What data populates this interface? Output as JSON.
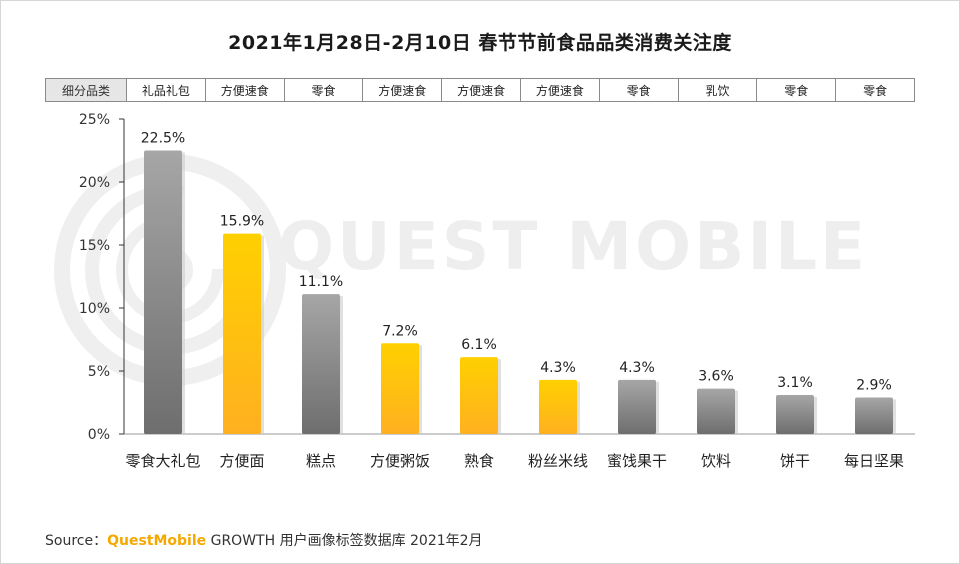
{
  "title": "2021年1月28日-2月10日 春节节前食品品类消费关注度",
  "table": {
    "header": "细分品类",
    "cells": [
      "礼品礼包",
      "方便速食",
      "零食",
      "方便速食",
      "方便速食",
      "方便速食",
      "零食",
      "乳饮",
      "零食",
      "零食"
    ]
  },
  "watermark": "QUEST MOBILE",
  "source": {
    "prefix": "Source：",
    "brand": "QuestMobile",
    "suffix": " GROWTH 用户画像标签数据库 2021年2月"
  },
  "colors": {
    "gray": "#8c8c8c",
    "yellow": "#ffc000",
    "axis": "#333333"
  },
  "chart_data": {
    "type": "bar",
    "title": "2021年1月28日-2月10日 春节节前食品品类消费关注度",
    "categories": [
      "零食大礼包",
      "方便面",
      "糕点",
      "方便粥饭",
      "熟食",
      "粉丝米线",
      "蜜饯果干",
      "饮料",
      "饼干",
      "每日坚果"
    ],
    "values": [
      22.5,
      15.9,
      11.1,
      7.2,
      6.1,
      4.3,
      4.3,
      3.6,
      3.1,
      2.9
    ],
    "value_labels": [
      "22.5%",
      "15.9%",
      "11.1%",
      "7.2%",
      "6.1%",
      "4.3%",
      "4.3%",
      "3.6%",
      "3.1%",
      "2.9%"
    ],
    "bar_colors": [
      "gray",
      "yellow",
      "gray",
      "yellow",
      "yellow",
      "yellow",
      "gray",
      "gray",
      "gray",
      "gray"
    ],
    "yticks": [
      0,
      5,
      10,
      15,
      20,
      25
    ],
    "ytick_labels": [
      "0%",
      "5%",
      "10%",
      "15%",
      "20%",
      "25%"
    ],
    "ylim": [
      0,
      25
    ],
    "xlabel": "",
    "ylabel": "",
    "grid": false
  }
}
